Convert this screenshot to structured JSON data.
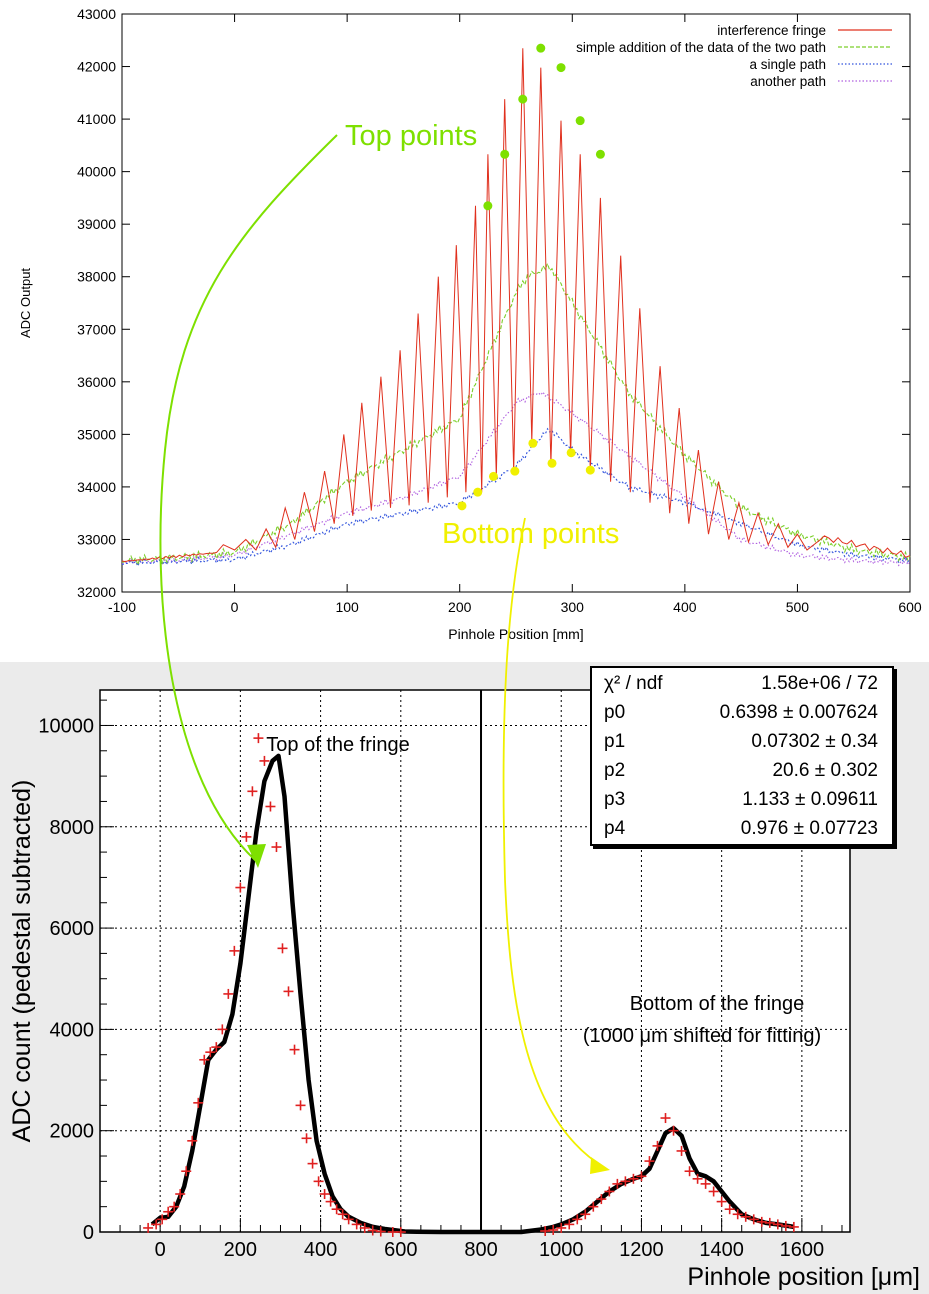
{
  "chart_data": [
    {
      "type": "line",
      "xlabel": "Pinhole Position [mm]",
      "ylabel": "ADC Output",
      "xlim": [
        -100,
        600
      ],
      "ylim": [
        32000,
        43000
      ],
      "x_ticks": [
        "-100",
        "0",
        "100",
        "200",
        "300",
        "400",
        "500",
        "600"
      ],
      "y_ticks": [
        "32000",
        "33000",
        "34000",
        "35000",
        "36000",
        "37000",
        "38000",
        "39000",
        "40000",
        "41000",
        "42000",
        "43000"
      ],
      "legend_position": "top-right",
      "series": [
        {
          "name": "interference fringe",
          "color": "#e0301e",
          "style": "solid"
        },
        {
          "name": "simple addition of the data of the two path",
          "color": "#7ccf2a",
          "style": "dashed"
        },
        {
          "name": "a single path",
          "color": "#3355dd",
          "style": "dotted"
        },
        {
          "name": "another path",
          "color": "#b060e0",
          "style": "dotted"
        }
      ],
      "fringe_peaks_x": [
        -10,
        10,
        28,
        45,
        62,
        80,
        97,
        113,
        130,
        147,
        163,
        181,
        197,
        214,
        225,
        240,
        256,
        272,
        290,
        307,
        325,
        343,
        360,
        378,
        395,
        412,
        430,
        448,
        465,
        483,
        500
      ],
      "fringe_peaks_y": [
        32900,
        33000,
        33200,
        33600,
        33900,
        34300,
        35000,
        35600,
        36100,
        36600,
        37300,
        38000,
        38600,
        39350,
        40330,
        41380,
        42350,
        41980,
        40970,
        40330,
        39500,
        38400,
        37400,
        36300,
        35500,
        34700,
        34100,
        33700,
        33500,
        33300,
        33100
      ],
      "fringe_troughs_y": [
        32800,
        32800,
        32850,
        33000,
        33150,
        33300,
        33450,
        33550,
        33600,
        33650,
        33700,
        33800,
        33900,
        33900,
        34200,
        34300,
        34850,
        34450,
        34650,
        34320,
        34100,
        33900,
        33700,
        33500,
        33300,
        33100,
        33000,
        32950,
        32900,
        32850,
        32800
      ],
      "sum_curve_x": [
        -100,
        -50,
        0,
        50,
        100,
        150,
        200,
        250,
        260,
        270,
        280,
        300,
        350,
        400,
        450,
        500,
        550,
        600
      ],
      "sum_curve_y": [
        32600,
        32650,
        32750,
        33300,
        34100,
        34700,
        35300,
        37700,
        38000,
        38100,
        38200,
        37500,
        35800,
        34600,
        33600,
        33100,
        32800,
        32650
      ],
      "single_path_x": [
        -100,
        -50,
        0,
        50,
        100,
        150,
        200,
        250,
        270,
        280,
        300,
        350,
        400,
        450,
        500,
        550,
        600
      ],
      "single_path_y": [
        32550,
        32580,
        32620,
        32900,
        33300,
        33500,
        33700,
        34400,
        34900,
        35100,
        34700,
        34000,
        33700,
        33300,
        32900,
        32700,
        32600
      ],
      "another_path_x": [
        -100,
        -50,
        0,
        50,
        100,
        150,
        200,
        250,
        270,
        280,
        300,
        350,
        400,
        450,
        500,
        550,
        600
      ],
      "another_path_y": [
        32570,
        32600,
        32700,
        33100,
        33500,
        33800,
        34200,
        35600,
        35800,
        35700,
        35400,
        34600,
        33800,
        33000,
        32700,
        32600,
        32550
      ],
      "top_points": [
        [
          225,
          39350
        ],
        [
          240,
          40330
        ],
        [
          256,
          41380
        ],
        [
          272,
          42350
        ],
        [
          290,
          41980
        ],
        [
          307,
          40970
        ],
        [
          325,
          40330
        ]
      ],
      "bottom_points": [
        [
          202,
          33640
        ],
        [
          216,
          33900
        ],
        [
          230,
          34200
        ],
        [
          249,
          34300
        ],
        [
          265,
          34830
        ],
        [
          282,
          34450
        ],
        [
          299,
          34650
        ],
        [
          316,
          34320
        ]
      ],
      "annotations": [
        "Top points",
        "Bottom points"
      ]
    },
    {
      "type": "scatter",
      "xlabel": "Pinhole position [μm]",
      "ylabel": "ADC count (pedestal subtracted)",
      "xlim": [
        -150,
        1720
      ],
      "ylim": [
        0,
        10700
      ],
      "x_ticks": [
        "0",
        "200",
        "400",
        "600",
        "800",
        "1000",
        "1200",
        "1400",
        "1600"
      ],
      "y_ticks": [
        "0",
        "2000",
        "4000",
        "6000",
        "8000",
        "10000"
      ],
      "annotations": [
        "Top of the fringe",
        "Bottom of the fringe",
        "(1000 μm shifted for fitting)"
      ],
      "data_points_x": [
        -30,
        -10,
        5,
        20,
        35,
        50,
        65,
        80,
        95,
        110,
        125,
        140,
        155,
        170,
        185,
        200,
        215,
        230,
        245,
        260,
        275,
        290,
        305,
        320,
        335,
        350,
        365,
        380,
        395,
        410,
        425,
        440,
        455,
        470,
        490,
        510,
        530,
        550,
        580,
        600,
        960,
        980,
        1000,
        1020,
        1040,
        1060,
        1080,
        1100,
        1120,
        1140,
        1160,
        1180,
        1200,
        1220,
        1240,
        1260,
        1280,
        1300,
        1320,
        1340,
        1360,
        1380,
        1400,
        1420,
        1440,
        1460,
        1480,
        1500,
        1520,
        1540,
        1560,
        1580
      ],
      "data_points_y": [
        80,
        150,
        250,
        400,
        500,
        750,
        1200,
        1800,
        2550,
        3400,
        3550,
        3650,
        4000,
        4700,
        5550,
        6800,
        7800,
        8700,
        9750,
        9300,
        8400,
        7600,
        5600,
        4750,
        3600,
        2500,
        1850,
        1350,
        1000,
        750,
        600,
        450,
        350,
        250,
        150,
        80,
        30,
        10,
        0,
        0,
        20,
        40,
        80,
        150,
        250,
        350,
        500,
        650,
        800,
        950,
        1000,
        1050,
        1100,
        1400,
        1700,
        2250,
        2000,
        1600,
        1200,
        1050,
        950,
        800,
        600,
        450,
        350,
        300,
        250,
        200,
        180,
        150,
        120,
        100
      ],
      "fit_x": [
        -20,
        0,
        20,
        40,
        60,
        80,
        100,
        120,
        140,
        160,
        180,
        200,
        220,
        240,
        260,
        280,
        295,
        310,
        330,
        350,
        370,
        390,
        410,
        430,
        450,
        470,
        500,
        530,
        560,
        590,
        610,
        640,
        700,
        800,
        900,
        950,
        980,
        1000,
        1030,
        1060,
        1090,
        1120,
        1150,
        1180,
        1200,
        1220,
        1240,
        1260,
        1280,
        1300,
        1320,
        1340,
        1360,
        1380,
        1400,
        1420,
        1450,
        1480,
        1510,
        1540,
        1580
      ],
      "fit_y": [
        150,
        280,
        300,
        500,
        900,
        1600,
        2500,
        3400,
        3600,
        3750,
        4300,
        5300,
        6600,
        7900,
        8900,
        9300,
        9400,
        8600,
        6500,
        4700,
        3000,
        1800,
        1150,
        700,
        450,
        300,
        180,
        100,
        60,
        30,
        10,
        5,
        0,
        0,
        0,
        50,
        100,
        150,
        250,
        400,
        600,
        800,
        950,
        1050,
        1100,
        1250,
        1600,
        1950,
        2050,
        1900,
        1450,
        1150,
        1100,
        1000,
        800,
        600,
        350,
        250,
        180,
        150,
        100
      ],
      "fit_stats": [
        {
          "name": "χ² / ndf",
          "value": "1.58e+06 / 72"
        },
        {
          "name": "p0",
          "value": "0.6398 ± 0.007624"
        },
        {
          "name": "p1",
          "value": "0.07302 ± 0.34"
        },
        {
          "name": "p2",
          "value": "20.6  ±  0.302"
        },
        {
          "name": "p3",
          "value": "1.133  ±  0.09611"
        },
        {
          "name": "p4",
          "value": "0.976  ± 0.07723"
        }
      ]
    }
  ],
  "colors": {
    "fringe": "#e0301e",
    "sum": "#7ccf2a",
    "single": "#3355dd",
    "another": "#b060e0",
    "top_points": "#7ee000",
    "bottom_points": "#f0f000",
    "arrow_green": "#7ee000",
    "arrow_yellow": "#f0f000",
    "fit_line": "#000000",
    "data_marker": "#e02020"
  }
}
